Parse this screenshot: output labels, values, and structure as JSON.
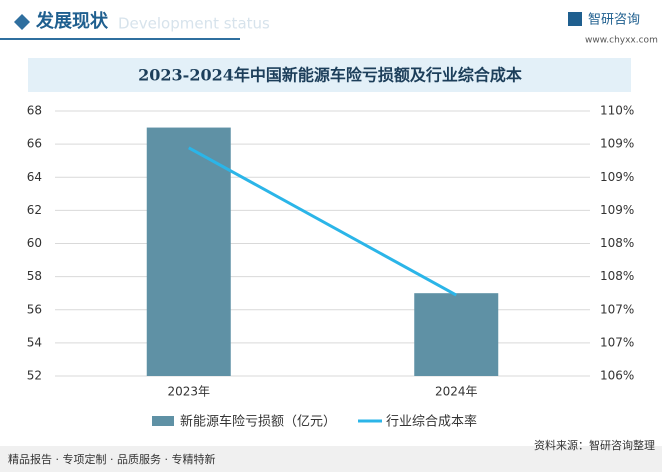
{
  "header": {
    "title": "发展现状",
    "subtitle": "Development status",
    "brand": "智研咨询",
    "url": "www.chyxx.com"
  },
  "chart_data": {
    "type": "bar",
    "title": "2023-2024年中国新能源车险亏损额及行业综合成本",
    "categories": [
      "2023年",
      "2024年"
    ],
    "series": [
      {
        "name": "新能源车险亏损额（亿元）",
        "type": "bar",
        "color": "#5f91a5",
        "values": [
          67,
          57
        ]
      },
      {
        "name": "行业综合成本率",
        "type": "line",
        "axis": "y2",
        "color": "#2bb5e8",
        "values": [
          109.4,
          107.4
        ]
      }
    ],
    "ylim": [
      52,
      68
    ],
    "yticks": [
      52,
      54,
      56,
      58,
      60,
      62,
      64,
      66,
      68
    ],
    "y2lim": [
      106.3,
      109.9
    ],
    "y2ticks": [
      {
        "value": 106.3,
        "label": "106%"
      },
      {
        "value": 106.75,
        "label": "107%"
      },
      {
        "value": 107.2,
        "label": "107%"
      },
      {
        "value": 107.65,
        "label": "108%"
      },
      {
        "value": 108.1,
        "label": "108%"
      },
      {
        "value": 108.55,
        "label": "109%"
      },
      {
        "value": 109.0,
        "label": "109%"
      },
      {
        "value": 109.45,
        "label": "109%"
      },
      {
        "value": 109.9,
        "label": "110%"
      }
    ],
    "grid": true,
    "legend": "bottom"
  },
  "footer": {
    "left": "精品报告 · 专项定制 · 品质服务 · 专精特新",
    "right": "资料来源：智研咨询整理"
  }
}
